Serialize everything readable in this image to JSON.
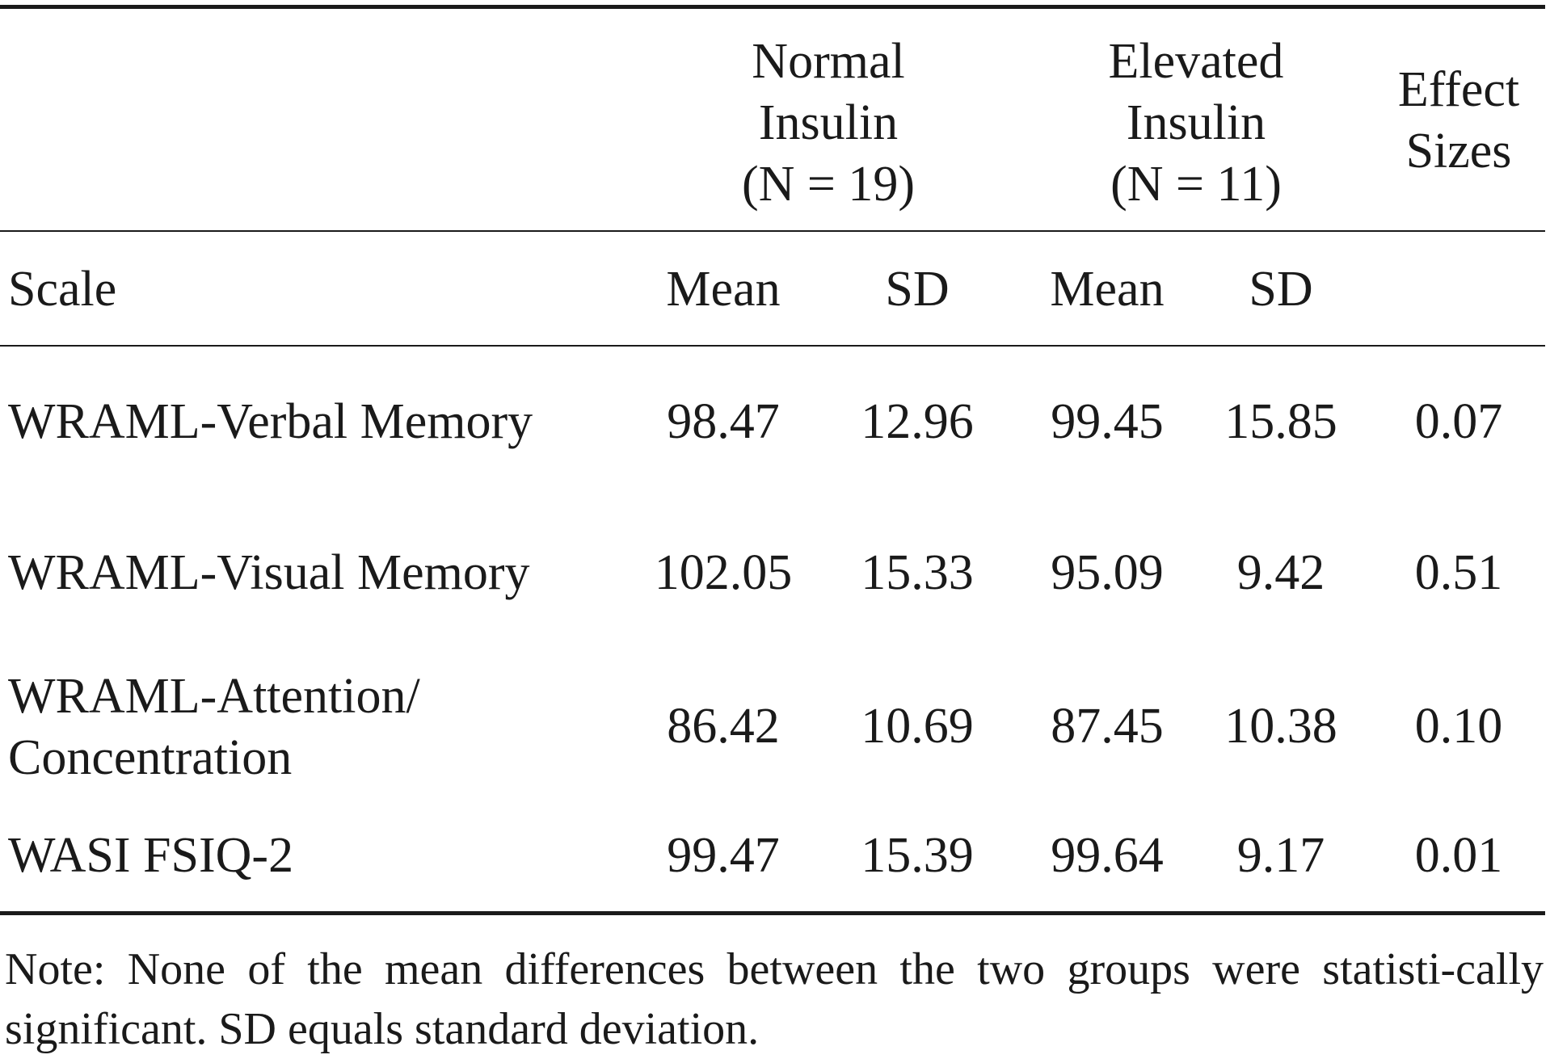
{
  "table": {
    "groups": [
      {
        "line1": "Normal",
        "line2": "Insulin",
        "line3": "(N = 19)"
      },
      {
        "line1": "Elevated",
        "line2": "Insulin",
        "line3": "(N = 11)"
      }
    ],
    "effect_header": {
      "line1": "Effect",
      "line2": "Sizes"
    },
    "subheaders": {
      "scale": "Scale",
      "mean1": "Mean",
      "sd1": "SD",
      "mean2": "Mean",
      "sd2": "SD"
    },
    "rows": [
      {
        "scale": "WRAML-Verbal Memory",
        "mean1": "98.47",
        "sd1": "12.96",
        "mean2": "99.45",
        "sd2": "15.85",
        "effect": "0.07"
      },
      {
        "scale": "WRAML-Visual Memory",
        "mean1": "102.05",
        "sd1": "15.33",
        "mean2": "95.09",
        "sd2": "9.42",
        "effect": "0.51"
      },
      {
        "scale_line1": "WRAML-Attention/",
        "scale_line2": "Concentration",
        "mean1": "86.42",
        "sd1": "10.69",
        "mean2": "87.45",
        "sd2": "10.38",
        "effect": "0.10"
      },
      {
        "scale": "WASI FSIQ-2",
        "mean1": "99.47",
        "sd1": "15.39",
        "mean2": "99.64",
        "sd2": "9.17",
        "effect": "0.01"
      }
    ],
    "note": "Note: None of the mean differences between the two groups were statisti-cally significant. SD equals standard deviation."
  }
}
